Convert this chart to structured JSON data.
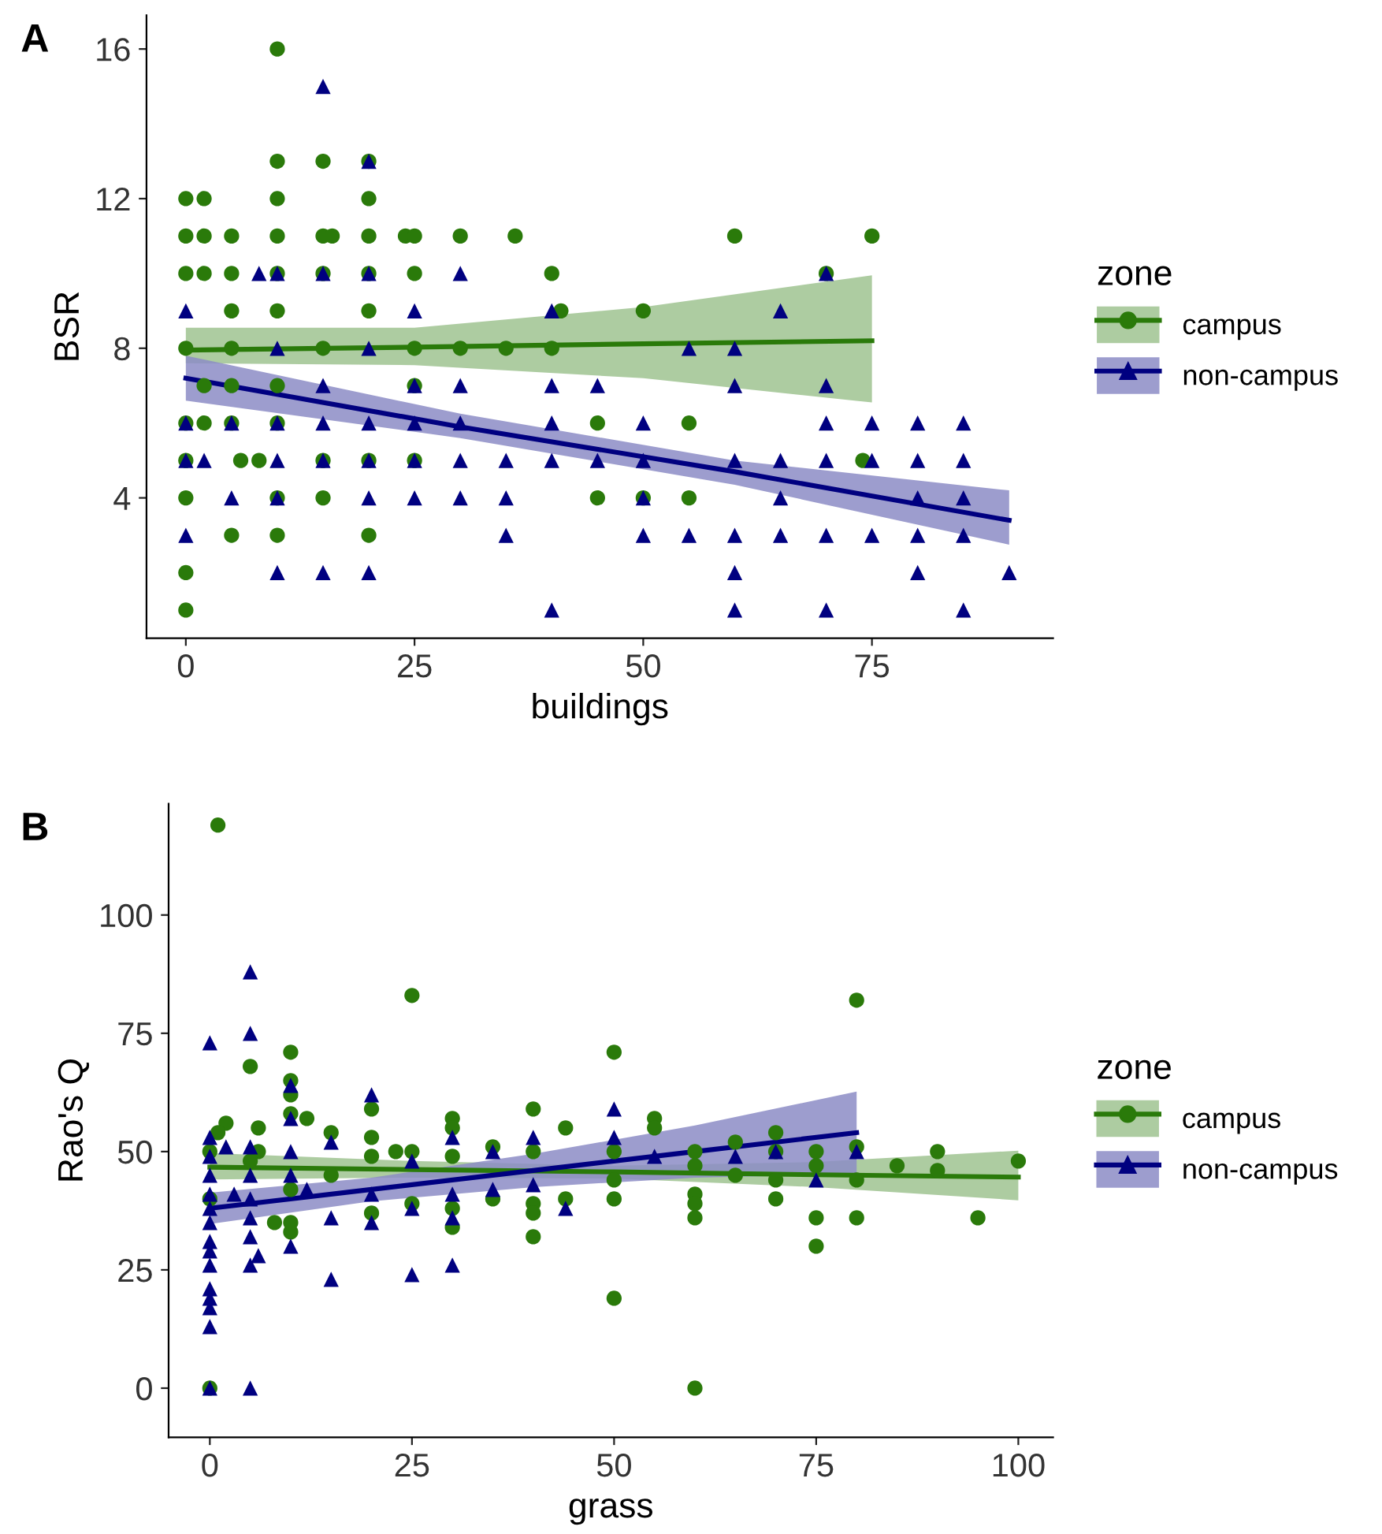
{
  "chart_data": [
    {
      "type": "scatter",
      "title": "A",
      "xlabel": "buildings",
      "ylabel": "BSR",
      "legend_title": "zone",
      "legend": "right",
      "grid": false,
      "xlim": [
        -4.3,
        94.8
      ],
      "ylim": [
        0.25,
        16.9
      ],
      "xticks": [
        0,
        25,
        50,
        75
      ],
      "yticks": [
        4,
        8,
        12,
        16
      ],
      "series": [
        {
          "name": "campus",
          "color": "#2a7a0a",
          "marker": "circle",
          "x": [
            10,
            10,
            15,
            20,
            0,
            2,
            10,
            20,
            0,
            2,
            5,
            10,
            15,
            16,
            20,
            24,
            25,
            30,
            36,
            60,
            75,
            0,
            2,
            5,
            10,
            15,
            20,
            25,
            40,
            70,
            5,
            10,
            20,
            41,
            50,
            0,
            5,
            15,
            25,
            30,
            35,
            40,
            2,
            5,
            10,
            25,
            0,
            2,
            5,
            10,
            45,
            55,
            0,
            6,
            8,
            15,
            20,
            25,
            74,
            0,
            10,
            15,
            45,
            50,
            55,
            5,
            10,
            20,
            0,
            0
          ],
          "values": [
            16,
            13,
            13,
            13,
            12,
            12,
            12,
            12,
            11,
            11,
            11,
            11,
            11,
            11,
            11,
            11,
            11,
            11,
            11,
            11,
            11,
            10,
            10,
            10,
            10,
            10,
            10,
            10,
            10,
            10,
            9,
            9,
            9,
            9,
            9,
            8,
            8,
            8,
            8,
            8,
            8,
            8,
            7,
            7,
            7,
            7,
            6,
            6,
            6,
            6,
            6,
            6,
            5,
            5,
            5,
            5,
            5,
            5,
            5,
            4,
            4,
            4,
            4,
            4,
            4,
            3,
            3,
            3,
            2,
            1
          ]
        },
        {
          "name": "non-campus",
          "color": "#000080",
          "marker": "triangle",
          "x": [
            15,
            20,
            8,
            10,
            15,
            20,
            30,
            70,
            0,
            25,
            40,
            65,
            10,
            20,
            55,
            60,
            15,
            25,
            30,
            40,
            45,
            60,
            70,
            0,
            5,
            10,
            15,
            20,
            25,
            30,
            40,
            50,
            70,
            75,
            80,
            85,
            0,
            2,
            10,
            15,
            20,
            25,
            30,
            35,
            40,
            45,
            50,
            60,
            65,
            70,
            75,
            80,
            85,
            5,
            10,
            20,
            25,
            30,
            35,
            50,
            65,
            80,
            85,
            0,
            35,
            50,
            55,
            60,
            65,
            70,
            75,
            80,
            85,
            10,
            15,
            20,
            60,
            80,
            90,
            40,
            60,
            70,
            85
          ],
          "values": [
            15,
            13,
            10,
            10,
            10,
            10,
            10,
            10,
            9,
            9,
            9,
            9,
            8,
            8,
            8,
            8,
            7,
            7,
            7,
            7,
            7,
            7,
            7,
            6,
            6,
            6,
            6,
            6,
            6,
            6,
            6,
            6,
            6,
            6,
            6,
            6,
            5,
            5,
            5,
            5,
            5,
            5,
            5,
            5,
            5,
            5,
            5,
            5,
            5,
            5,
            5,
            5,
            5,
            4,
            4,
            4,
            4,
            4,
            4,
            4,
            4,
            4,
            4,
            3,
            3,
            3,
            3,
            3,
            3,
            3,
            3,
            3,
            3,
            2,
            2,
            2,
            2,
            2,
            2,
            1,
            1,
            1,
            1
          ]
        },
        {
          "type": "line",
          "color": "#2a7a0a",
          "x": [
            0,
            25,
            50,
            75
          ],
          "values": [
            7.95,
            8.03,
            8.12,
            8.2
          ],
          "lower": [
            7.6,
            7.55,
            7.2,
            6.55
          ],
          "upper": [
            8.55,
            8.55,
            9.1,
            9.95
          ]
        },
        {
          "type": "line",
          "color": "#000080",
          "x": [
            0,
            30,
            60,
            90
          ],
          "values": [
            7.2,
            5.9,
            4.7,
            3.4
          ],
          "lower": [
            6.6,
            5.6,
            4.35,
            2.75
          ],
          "upper": [
            7.8,
            6.25,
            5.0,
            4.2
          ]
        }
      ]
    },
    {
      "type": "scatter",
      "title": "B",
      "xlabel": "grass",
      "ylabel": "Rao's Q",
      "legend_title": "zone",
      "legend": "right",
      "grid": false,
      "xlim": [
        -5.1,
        104.3
      ],
      "ylim": [
        -10.4,
        123.5
      ],
      "xticks": [
        0,
        25,
        50,
        75,
        100
      ],
      "yticks": [
        0,
        25,
        50,
        75,
        100
      ],
      "series": [
        {
          "name": "campus",
          "color": "#2a7a0a",
          "marker": "circle",
          "x": [
            1,
            0,
            0,
            0,
            2,
            1,
            5,
            6,
            6,
            5,
            8,
            10,
            10,
            10,
            10,
            10,
            10,
            10,
            12,
            15,
            15,
            20,
            20,
            20,
            20,
            23,
            25,
            25,
            25,
            30,
            30,
            30,
            30,
            30,
            35,
            35,
            40,
            40,
            40,
            40,
            40,
            44,
            44,
            50,
            50,
            50,
            50,
            50,
            55,
            55,
            60,
            60,
            60,
            60,
            60,
            60,
            65,
            65,
            70,
            70,
            70,
            70,
            75,
            75,
            75,
            75,
            80,
            80,
            80,
            80,
            85,
            90,
            90,
            95,
            100
          ],
          "values": [
            119,
            40,
            0,
            50,
            56,
            54,
            68,
            55,
            50,
            48,
            35,
            71,
            65,
            62,
            58,
            42,
            33,
            35,
            57,
            54,
            45,
            59,
            53,
            49,
            37,
            50,
            83,
            50,
            39,
            57,
            55,
            49,
            38,
            34,
            51,
            40,
            59,
            50,
            39,
            37,
            32,
            55,
            40,
            71,
            19,
            50,
            40,
            44,
            57,
            55,
            50,
            47,
            41,
            39,
            36,
            0,
            52,
            45,
            54,
            50,
            44,
            40,
            50,
            47,
            36,
            30,
            82,
            51,
            44,
            36,
            47,
            50,
            46,
            36,
            48
          ]
        },
        {
          "name": "non-campus",
          "color": "#000080",
          "marker": "triangle",
          "x": [
            0,
            0,
            0,
            0,
            0,
            0,
            0,
            0,
            0,
            0,
            0,
            0,
            0,
            0,
            0,
            2,
            3,
            5,
            5,
            5,
            5,
            5,
            5,
            5,
            5,
            5,
            6,
            10,
            10,
            10,
            10,
            10,
            12,
            15,
            15,
            15,
            20,
            20,
            20,
            25,
            25,
            25,
            30,
            30,
            30,
            30,
            35,
            35,
            40,
            40,
            44,
            50,
            50,
            55,
            65,
            70,
            75,
            80
          ],
          "values": [
            73,
            53,
            49,
            45,
            41,
            38,
            35,
            31,
            29,
            26,
            21,
            19,
            17,
            13,
            0,
            51,
            41,
            88,
            75,
            51,
            45,
            40,
            36,
            32,
            26,
            0,
            28,
            64,
            57,
            50,
            45,
            30,
            42,
            52,
            36,
            23,
            62,
            41,
            35,
            48,
            38,
            24,
            53,
            41,
            36,
            26,
            50,
            42,
            53,
            43,
            38,
            59,
            53,
            49,
            49,
            50,
            44,
            50
          ]
        },
        {
          "type": "line",
          "color": "#2a7a0a",
          "x": [
            0,
            25,
            50,
            75,
            100
          ],
          "values": [
            46.7,
            46.2,
            45.7,
            45.1,
            44.6
          ],
          "lower": [
            44.1,
            44.5,
            44.3,
            42.5,
            39.7
          ],
          "upper": [
            49.7,
            48,
            47,
            47.8,
            50.2
          ]
        },
        {
          "type": "line",
          "color": "#000080",
          "x": [
            0,
            20,
            40,
            60,
            80
          ],
          "values": [
            38,
            42,
            46,
            50,
            54
          ],
          "lower": [
            34.7,
            39.5,
            42.5,
            44.5,
            45.2
          ],
          "upper": [
            41.3,
            44.5,
            49.5,
            55.5,
            62.7
          ]
        }
      ]
    }
  ]
}
